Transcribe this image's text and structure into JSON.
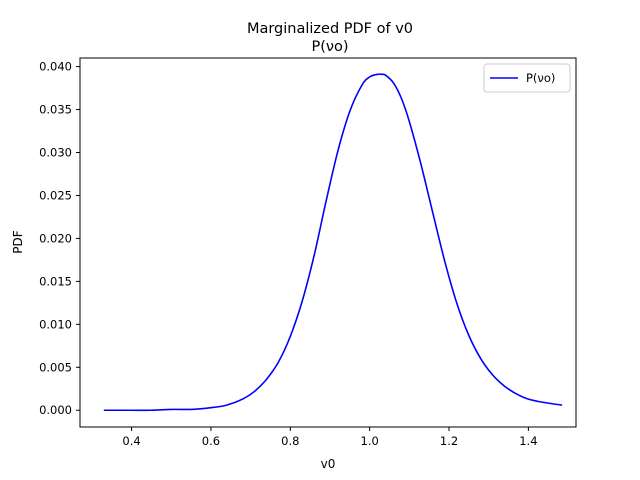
{
  "chart_data": {
    "type": "line",
    "title": "Marginalized PDF of v0",
    "subtitle": "P(νο)",
    "xlabel": "v0",
    "ylabel": "PDF",
    "xlim": [
      0.27,
      1.52
    ],
    "ylim": [
      -0.00195,
      0.041
    ],
    "xticks": [
      0.4,
      0.6,
      0.8,
      1.0,
      1.2,
      1.4
    ],
    "yticks": [
      0.0,
      0.005,
      0.01,
      0.015,
      0.02,
      0.025,
      0.03,
      0.035,
      0.04
    ],
    "xtick_labels": [
      "0.4",
      "0.6",
      "0.8",
      "1.0",
      "1.2",
      "1.4"
    ],
    "ytick_labels": [
      "0.000",
      "0.005",
      "0.010",
      "0.015",
      "0.020",
      "0.025",
      "0.030",
      "0.035",
      "0.040"
    ],
    "grid": false,
    "legend": "top-right",
    "series": [
      {
        "name": "P(νο)",
        "color": "#0000ff",
        "x": [
          0.33,
          0.4,
          0.45,
          0.5,
          0.55,
          0.6,
          0.64,
          0.68,
          0.71,
          0.74,
          0.77,
          0.8,
          0.83,
          0.86,
          0.89,
          0.92,
          0.95,
          0.98,
          1.0,
          1.02,
          1.03,
          1.04,
          1.06,
          1.08,
          1.1,
          1.13,
          1.16,
          1.19,
          1.22,
          1.25,
          1.28,
          1.31,
          1.34,
          1.37,
          1.4,
          1.44,
          1.485
        ],
        "y": [
          0.0,
          0.0,
          0.0,
          0.0001,
          0.0001,
          0.0003,
          0.0006,
          0.0013,
          0.0022,
          0.0036,
          0.0056,
          0.0086,
          0.0127,
          0.018,
          0.0243,
          0.0302,
          0.0348,
          0.0378,
          0.0388,
          0.0391,
          0.0391,
          0.039,
          0.0381,
          0.0363,
          0.0336,
          0.0285,
          0.0228,
          0.0172,
          0.0124,
          0.0087,
          0.006,
          0.0041,
          0.0028,
          0.0019,
          0.0013,
          0.0009,
          0.0006
        ]
      }
    ]
  }
}
